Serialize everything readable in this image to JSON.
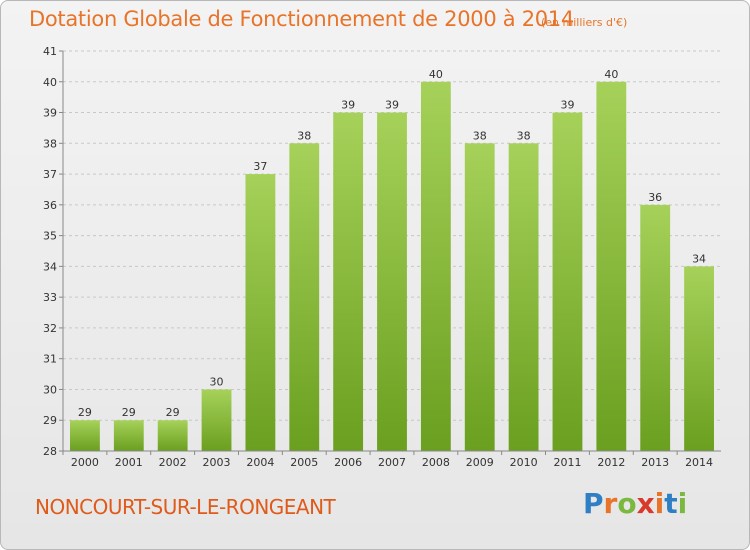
{
  "header": {
    "title": "Dotation Globale de Fonctionnement de 2000 à 2014",
    "subtitle": "(en milliers d'€)"
  },
  "footer": {
    "commune": "NONCOURT-SUR-LE-RONGEANT",
    "logo_letters": [
      "P",
      "r",
      "o",
      "x",
      "i",
      "t",
      "i"
    ],
    "logo_colors": [
      "#2f7fc4",
      "#e8742a",
      "#7ab840",
      "#d8392b",
      "#e8742a",
      "#2f7fc4",
      "#7ab840"
    ]
  },
  "colors": {
    "bar_top": "#a6d15a",
    "bar_bottom": "#6a9f1f",
    "grid": "#c8c8c8",
    "axis": "#888888",
    "title": "#e8742a"
  },
  "chart_data": {
    "type": "bar",
    "title": "Dotation Globale de Fonctionnement de 2000 à 2014",
    "subtitle": "(en milliers d'€)",
    "xlabel": "",
    "ylabel": "",
    "categories": [
      "2000",
      "2001",
      "2002",
      "2003",
      "2004",
      "2005",
      "2006",
      "2007",
      "2008",
      "2009",
      "2010",
      "2011",
      "2012",
      "2013",
      "2014"
    ],
    "values": [
      29,
      29,
      29,
      30,
      37,
      38,
      39,
      39,
      40,
      38,
      38,
      39,
      40,
      36,
      34
    ],
    "ylim": [
      28,
      41
    ],
    "yticks": [
      28,
      29,
      30,
      31,
      32,
      33,
      34,
      35,
      36,
      37,
      38,
      39,
      40,
      41
    ],
    "grid": true,
    "legend": "none"
  }
}
